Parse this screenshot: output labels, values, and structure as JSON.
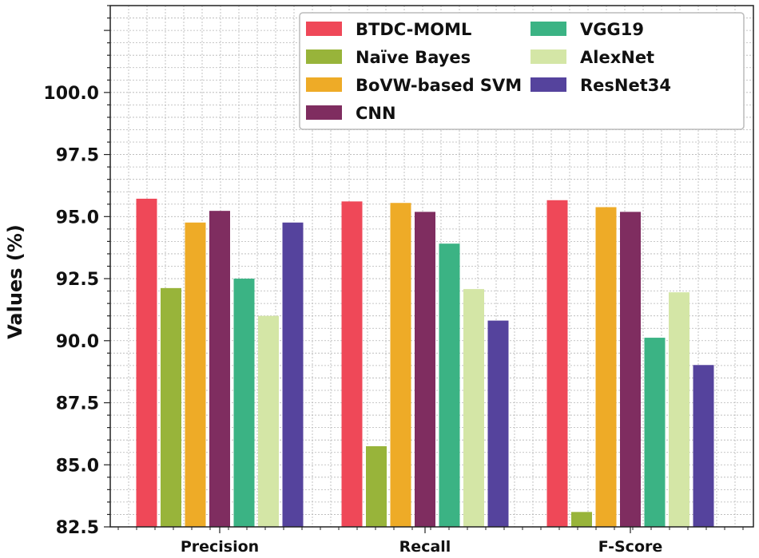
{
  "chart_data": {
    "type": "bar",
    "title": "",
    "xlabel": "",
    "ylabel": "Values (%)",
    "ylim": [
      82.5,
      103.5
    ],
    "yticks": [
      "82.5",
      "85.0",
      "87.5",
      "90.0",
      "92.5",
      "95.0",
      "97.5",
      "100.0"
    ],
    "grid": true,
    "legend_position": "top-right",
    "categories": [
      "Precision",
      "Recall",
      "F-Score"
    ],
    "series": [
      {
        "name": "BTDC-MOML",
        "color": "#ef4858",
        "values": [
          95.72,
          95.61,
          95.66
        ]
      },
      {
        "name": "Naïve Bayes",
        "color": "#98b43a",
        "values": [
          92.12,
          85.75,
          83.1
        ]
      },
      {
        "name": "BoVW-based SVM",
        "color": "#eeab27",
        "values": [
          94.76,
          95.55,
          95.38
        ]
      },
      {
        "name": "CNN",
        "color": "#7f2d60",
        "values": [
          95.23,
          95.19,
          95.19
        ]
      },
      {
        "name": "VGG19",
        "color": "#3bb384",
        "values": [
          92.5,
          93.91,
          90.12
        ]
      },
      {
        "name": "AlexNet",
        "color": "#d4e6a6",
        "values": [
          91.0,
          92.08,
          91.95
        ]
      },
      {
        "name": "ResNet34",
        "color": "#55439d",
        "values": [
          94.76,
          90.81,
          89.02
        ]
      }
    ]
  }
}
